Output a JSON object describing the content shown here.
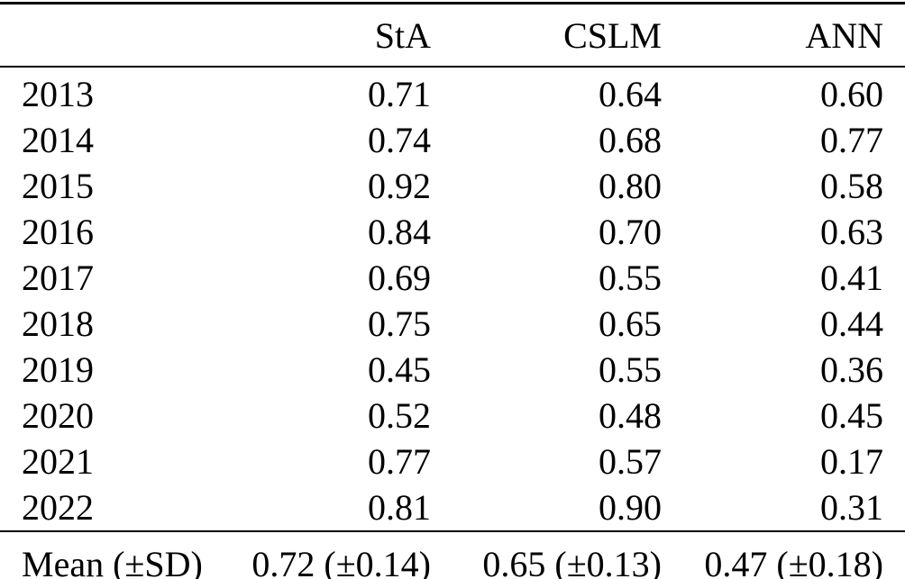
{
  "table": {
    "columns": [
      "",
      "StA",
      "CSLM",
      "ANN"
    ],
    "rows": [
      {
        "label": "2013",
        "values": [
          "0.71",
          "0.64",
          "0.60"
        ]
      },
      {
        "label": "2014",
        "values": [
          "0.74",
          "0.68",
          "0.77"
        ]
      },
      {
        "label": "2015",
        "values": [
          "0.92",
          "0.80",
          "0.58"
        ]
      },
      {
        "label": "2016",
        "values": [
          "0.84",
          "0.70",
          "0.63"
        ]
      },
      {
        "label": "2017",
        "values": [
          "0.69",
          "0.55",
          "0.41"
        ]
      },
      {
        "label": "2018",
        "values": [
          "0.75",
          "0.65",
          "0.44"
        ]
      },
      {
        "label": "2019",
        "values": [
          "0.45",
          "0.55",
          "0.36"
        ]
      },
      {
        "label": "2020",
        "values": [
          "0.52",
          "0.48",
          "0.45"
        ]
      },
      {
        "label": "2021",
        "values": [
          "0.77",
          "0.57",
          "0.17"
        ]
      },
      {
        "label": "2022",
        "values": [
          "0.81",
          "0.90",
          "0.31"
        ]
      }
    ],
    "footer": {
      "label": "Mean (±SD)",
      "values": [
        "0.72 (±0.14)",
        "0.65 (±0.13)",
        "0.47 (±0.18)"
      ]
    }
  },
  "colors": {
    "text": "#000000",
    "background": "#ffffff",
    "rule": "#000000"
  },
  "chart_data": {
    "type": "table",
    "title": "",
    "columns": [
      "StA",
      "CSLM",
      "ANN"
    ],
    "years": [
      2013,
      2014,
      2015,
      2016,
      2017,
      2018,
      2019,
      2020,
      2021,
      2022
    ],
    "series": [
      {
        "name": "StA",
        "values": [
          0.71,
          0.74,
          0.92,
          0.84,
          0.69,
          0.75,
          0.45,
          0.52,
          0.77,
          0.81
        ],
        "mean": 0.72,
        "sd": 0.14
      },
      {
        "name": "CSLM",
        "values": [
          0.64,
          0.68,
          0.8,
          0.7,
          0.55,
          0.65,
          0.55,
          0.48,
          0.57,
          0.9
        ],
        "mean": 0.65,
        "sd": 0.13
      },
      {
        "name": "ANN",
        "values": [
          0.6,
          0.77,
          0.58,
          0.63,
          0.41,
          0.44,
          0.36,
          0.45,
          0.17,
          0.31
        ],
        "mean": 0.47,
        "sd": 0.18
      }
    ]
  }
}
